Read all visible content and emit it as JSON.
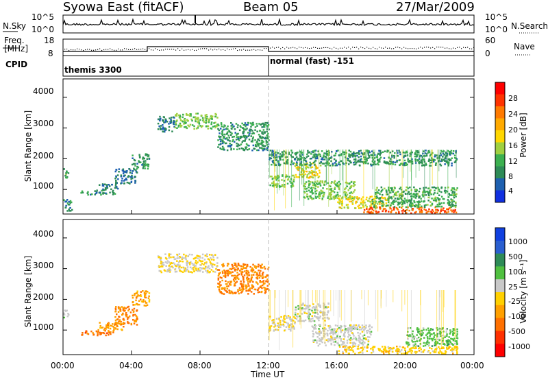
{
  "header": {
    "title": "Syowa East (fitACF)",
    "beam": "Beam 05",
    "date": "27/Mar/2009"
  },
  "top_panels": {
    "nsky_label": "N.Sky",
    "nsky_tick_top": "10^5",
    "nsky_tick_bottom": "10^0",
    "nsearch_label": "N.Search",
    "nsearch_tick_top": "10^5",
    "nsearch_tick_bottom": "10^0",
    "freq_label_line1": "Freq.",
    "freq_label_line2": "[MHz]",
    "freq_tick_top": "18",
    "freq_tick_bottom": "8",
    "nave_label": "Nave",
    "nave_tick_top": "60",
    "nave_tick_bottom": "0",
    "cpid_label": "CPID",
    "cpid_first": "themis 3300",
    "cpid_second": "normal (fast) -151"
  },
  "axes": {
    "ylabel": "Slant Range [km]",
    "xlabel": "Time UT",
    "y_ticks": [
      "4000",
      "3000",
      "2000",
      "1000"
    ],
    "x_ticks": [
      "00:00",
      "04:00",
      "08:00",
      "12:00",
      "16:00",
      "20:00",
      "00:00"
    ]
  },
  "colorbars": {
    "power": {
      "label": "Power [dB]",
      "ticks": [
        "28",
        "24",
        "20",
        "16",
        "12",
        "8",
        "4"
      ],
      "colors": [
        "#ff0000",
        "#ff3300",
        "#ff7a00",
        "#ffaa00",
        "#ffd700",
        "#a0d040",
        "#3cb050",
        "#2e8b57",
        "#1e60b0",
        "#1030e0"
      ]
    },
    "velocity": {
      "label": "Velocity [m s⁻¹]",
      "ticks": [
        "1000",
        "500",
        "100",
        "25",
        "-25",
        "-100",
        "-500",
        "-1000"
      ],
      "colors": [
        "#1040e0",
        "#2a5fd0",
        "#2e8b57",
        "#50c040",
        "#c8c8c8",
        "#ffd000",
        "#ffa000",
        "#ff7000",
        "#ff3000",
        "#ff0000"
      ]
    }
  },
  "chart_data": [
    {
      "type": "heatmap",
      "title": "Power",
      "xlabel": "Time UT",
      "ylabel": "Slant Range [km]",
      "xlim_hours": [
        0,
        24
      ],
      "ylim_km": [
        200,
        4600
      ],
      "colorbar_label": "Power [dB]",
      "colorbar_range": [
        0,
        30
      ],
      "regions": [
        {
          "t0": 0.0,
          "t1": 0.3,
          "r0": 1400,
          "r1": 1700,
          "value": 10
        },
        {
          "t0": 0.0,
          "t1": 0.5,
          "r0": 300,
          "r1": 700,
          "value": 8
        },
        {
          "t0": 1.0,
          "t1": 3.0,
          "r0": 850,
          "r1": 1000,
          "value": 8
        },
        {
          "t0": 2.0,
          "t1": 3.2,
          "r0": 1000,
          "r1": 1200,
          "value": 6
        },
        {
          "t0": 3.0,
          "t1": 4.3,
          "r0": 1200,
          "r1": 1700,
          "value": 6
        },
        {
          "t0": 4.0,
          "t1": 5.0,
          "r0": 1700,
          "r1": 2200,
          "value": 8
        },
        {
          "t0": 5.5,
          "t1": 6.5,
          "r0": 2900,
          "r1": 3400,
          "value": 6
        },
        {
          "t0": 6.5,
          "t1": 9.0,
          "r0": 3000,
          "r1": 3500,
          "value": 12
        },
        {
          "t0": 9.0,
          "t1": 12.0,
          "r0": 2300,
          "r1": 3200,
          "value": 8
        },
        {
          "t0": 12.0,
          "t1": 13.5,
          "r0": 1100,
          "r1": 1500,
          "value": 12
        },
        {
          "t0": 13.5,
          "t1": 15.0,
          "r0": 1400,
          "r1": 1900,
          "value": 16
        },
        {
          "t0": 14.0,
          "t1": 17.0,
          "r0": 700,
          "r1": 1300,
          "value": 12
        },
        {
          "t0": 16.0,
          "t1": 19.0,
          "r0": 400,
          "r1": 800,
          "value": 16
        },
        {
          "t0": 17.5,
          "t1": 23.0,
          "r0": 250,
          "r1": 450,
          "value": 24
        },
        {
          "t0": 18.0,
          "t1": 23.0,
          "r0": 450,
          "r1": 1100,
          "value": 10
        },
        {
          "t0": 12.0,
          "t1": 23.0,
          "r0": 1800,
          "r1": 2300,
          "value": 8
        }
      ]
    },
    {
      "type": "heatmap",
      "title": "Velocity",
      "xlabel": "Time UT",
      "ylabel": "Slant Range [km]",
      "xlim_hours": [
        0,
        24
      ],
      "ylim_km": [
        200,
        4600
      ],
      "colorbar_label": "Velocity [m s⁻¹]",
      "colorbar_range": [
        -1000,
        1000
      ],
      "regions": [
        {
          "t0": 0.0,
          "t1": 0.3,
          "r0": 1400,
          "r1": 1700,
          "value": 100
        },
        {
          "t0": 1.0,
          "t1": 3.0,
          "r0": 850,
          "r1": 1000,
          "value": -500
        },
        {
          "t0": 2.0,
          "t1": 3.5,
          "r0": 1000,
          "r1": 1300,
          "value": -300
        },
        {
          "t0": 3.0,
          "t1": 4.3,
          "r0": 1200,
          "r1": 1800,
          "value": -400
        },
        {
          "t0": 4.0,
          "t1": 5.0,
          "r0": 1800,
          "r1": 2300,
          "value": -300
        },
        {
          "t0": 5.5,
          "t1": 9.0,
          "r0": 2900,
          "r1": 3500,
          "value": 0
        },
        {
          "t0": 9.0,
          "t1": 12.0,
          "r0": 2200,
          "r1": 3200,
          "value": -400
        },
        {
          "t0": 12.0,
          "t1": 13.5,
          "r0": 1000,
          "r1": 1500,
          "value": 0
        },
        {
          "t0": 13.5,
          "t1": 15.5,
          "r0": 1300,
          "r1": 1900,
          "value": 100
        },
        {
          "t0": 14.5,
          "t1": 18.0,
          "r0": 500,
          "r1": 1200,
          "value": 100
        },
        {
          "t0": 16.0,
          "t1": 23.0,
          "r0": 250,
          "r1": 500,
          "value": -100
        },
        {
          "t0": 20.0,
          "t1": 23.0,
          "r0": 500,
          "r1": 1100,
          "value": 300
        }
      ]
    }
  ]
}
